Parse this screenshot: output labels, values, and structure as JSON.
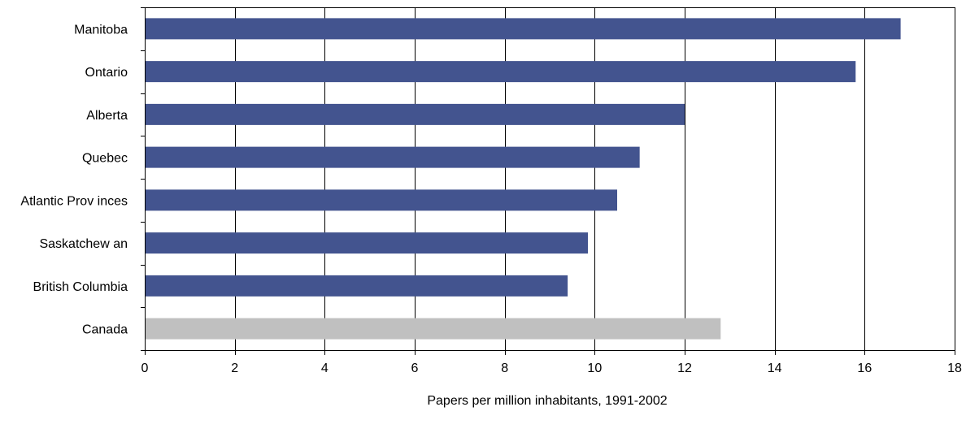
{
  "chart_data": {
    "type": "bar",
    "orientation": "horizontal",
    "categories": [
      "Manitoba",
      "Ontario",
      "Alberta",
      "Quebec",
      "Atlantic Prov inces",
      "Saskatchew an",
      "British Columbia",
      "Canada"
    ],
    "values": [
      16.8,
      15.8,
      12.0,
      11.0,
      10.5,
      9.85,
      9.4,
      12.8
    ],
    "bar_colors": [
      "#43548f",
      "#43548f",
      "#43548f",
      "#43548f",
      "#43548f",
      "#43548f",
      "#43548f",
      "#c0c0c0"
    ],
    "title": "",
    "xlabel": "Papers per million inhabitants, 1991-2002",
    "ylabel": "",
    "xlim": [
      0,
      18
    ],
    "xticks": [
      0,
      2,
      4,
      6,
      8,
      10,
      12,
      14,
      16,
      18
    ],
    "grid": "vertical",
    "legend": "none"
  }
}
